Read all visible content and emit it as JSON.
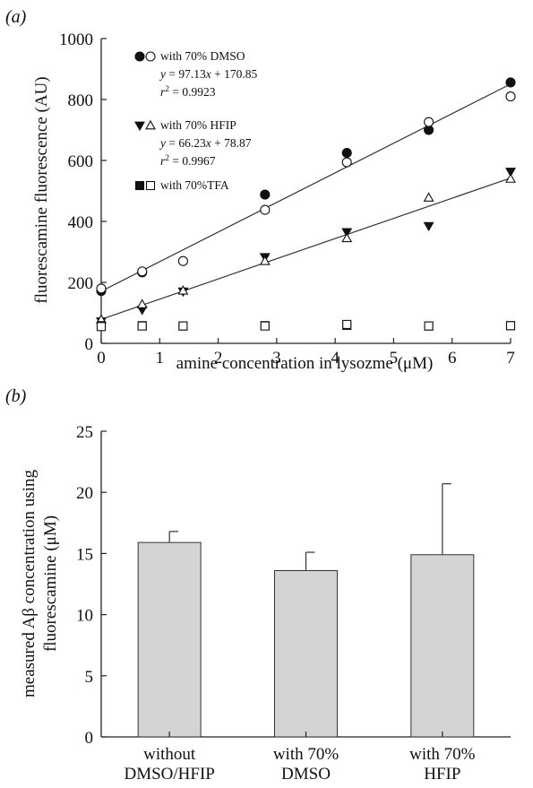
{
  "figure": {
    "panel_a_label": "(a)",
    "panel_b_label": "(b)"
  },
  "chart_data": [
    {
      "type": "scatter",
      "title": "",
      "xlabel": "amine concentration in lysozme (μM)",
      "ylabel": "fluorescamine fluorescence (AU)",
      "xlim": [
        0,
        7
      ],
      "ylim": [
        0,
        1000
      ],
      "xticks": [
        0,
        1,
        2,
        3,
        4,
        5,
        6,
        7
      ],
      "yticks": [
        0,
        200,
        400,
        600,
        800,
        1000
      ],
      "grid": false,
      "legend_position": "top-left",
      "series": [
        {
          "name": "with 70% DMSO",
          "marker": "circle",
          "fill": "filled",
          "points": [
            [
              0,
              172
            ],
            [
              0.7,
              233
            ],
            [
              2.8,
              488
            ],
            [
              4.2,
              625
            ],
            [
              5.6,
              700
            ],
            [
              7,
              856
            ]
          ]
        },
        {
          "name": "with 70% DMSO",
          "marker": "circle",
          "fill": "open",
          "points": [
            [
              0,
              180
            ],
            [
              0.7,
              236
            ],
            [
              1.4,
              270
            ],
            [
              2.8,
              438
            ],
            [
              4.2,
              594
            ],
            [
              5.6,
              726
            ],
            [
              7,
              810
            ]
          ]
        },
        {
          "name": "with 70% HFIP",
          "marker": "triangle-down",
          "fill": "filled",
          "points": [
            [
              0,
              72
            ],
            [
              0.7,
              110
            ],
            [
              1.4,
              170
            ],
            [
              2.8,
              283
            ],
            [
              4.2,
              365
            ],
            [
              5.6,
              385
            ],
            [
              7,
              563
            ]
          ]
        },
        {
          "name": "with 70% HFIP",
          "marker": "triangle-up",
          "fill": "open",
          "points": [
            [
              0,
              78
            ],
            [
              0.7,
              128
            ],
            [
              1.4,
              173
            ],
            [
              2.8,
              270
            ],
            [
              4.2,
              345
            ],
            [
              5.6,
              478
            ],
            [
              7,
              540
            ]
          ]
        },
        {
          "name": "with 70%TFA",
          "marker": "square",
          "fill": "filled",
          "points": [
            [
              0,
              58
            ],
            [
              0.7,
              58
            ],
            [
              1.4,
              57
            ],
            [
              2.8,
              58
            ],
            [
              4.2,
              59
            ],
            [
              5.6,
              57
            ],
            [
              7,
              58
            ]
          ]
        },
        {
          "name": "with 70%TFA",
          "marker": "square",
          "fill": "open",
          "points": [
            [
              0,
              55
            ],
            [
              0.7,
              57
            ],
            [
              1.4,
              57
            ],
            [
              2.8,
              57
            ],
            [
              4.2,
              62
            ],
            [
              5.6,
              57
            ],
            [
              7,
              58
            ]
          ]
        }
      ],
      "fit_lines": [
        {
          "slope": 97.13,
          "intercept": 170.85,
          "x_range": [
            0,
            7
          ]
        },
        {
          "slope": 66.23,
          "intercept": 78.87,
          "x_range": [
            0,
            7
          ]
        }
      ],
      "legend": [
        {
          "marker_filled": "circle",
          "marker_open": "circle",
          "label": "with 70% DMSO",
          "eq_y": "y",
          "eq_rest": " = 97.13",
          "eq_x": "x",
          "eq_tail": " + 170.85",
          "r2_r": "r",
          "r2_sup": "2",
          "r2_val": " = 0.9923"
        },
        {
          "marker_filled": "triangle-down",
          "marker_open": "triangle-up",
          "label": "with 70% HFIP",
          "eq_y": "y",
          "eq_rest": " = 66.23",
          "eq_x": "x",
          "eq_tail": " + 78.87",
          "r2_r": "r",
          "r2_sup": "2",
          "r2_val": " = 0.9967"
        },
        {
          "marker_filled": "square",
          "marker_open": "square",
          "label": "with 70%TFA"
        }
      ]
    },
    {
      "type": "bar",
      "title": "",
      "xlabel": "",
      "ylabel_line1": "measured Aβ concentration using",
      "ylabel_line2": "fluorescamine (μM)",
      "ylim": [
        0,
        25
      ],
      "yticks": [
        0,
        5,
        10,
        15,
        20,
        25
      ],
      "grid": false,
      "bar_color": "#d4d4d4",
      "categories": [
        [
          "without",
          "DMSO/HFIP"
        ],
        [
          "with 70%",
          "DMSO"
        ],
        [
          "with 70%",
          "HFIP"
        ]
      ],
      "values": [
        15.9,
        13.6,
        14.9
      ],
      "error_upper": [
        0.9,
        1.5,
        5.8
      ]
    }
  ]
}
